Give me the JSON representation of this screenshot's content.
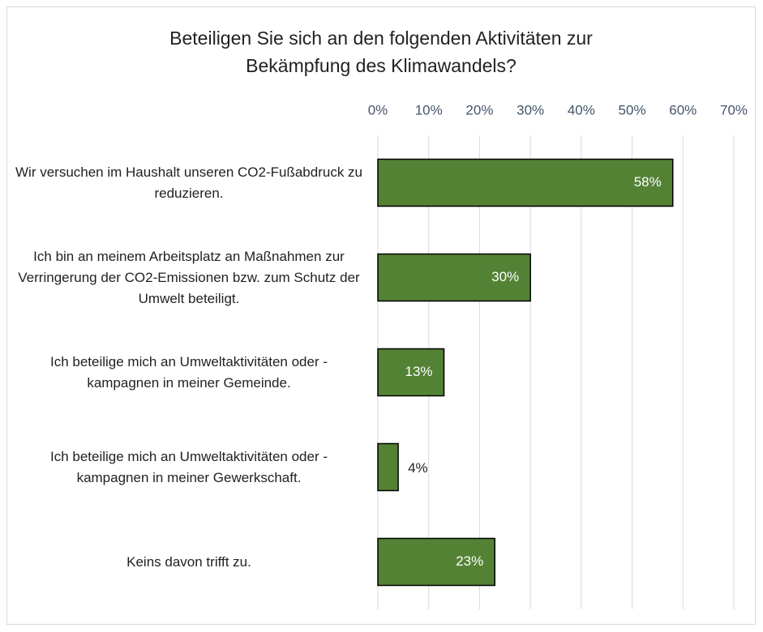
{
  "chart_data": {
    "type": "barh",
    "title": "Beteiligen Sie sich an den folgenden Aktivitäten zur Bekämpfung des Klimawandels?",
    "categories": [
      "Wir versuchen im Haushalt unseren CO2-Fußabdruck zu reduzieren.",
      "Ich bin an meinem Arbeitsplatz an Maßnahmen zur Verringerung der CO2-Emissionen bzw. zum Schutz der Umwelt beteiligt.",
      "Ich beteilige mich an Umweltaktivitäten oder -kampagnen in meiner Gemeinde.",
      "Ich beteilige mich an Umweltaktivitäten oder -kampagnen in meiner Gewerkschaft.",
      "Keins davon trifft zu."
    ],
    "values": [
      58,
      30,
      13,
      4,
      23
    ],
    "value_labels": [
      "58%",
      "30%",
      "13%",
      "4%",
      "23%"
    ],
    "color": "#548235",
    "xlim": [
      0,
      70
    ],
    "xticks": [
      {
        "value": 0,
        "label": "0%"
      },
      {
        "value": 10,
        "label": "10%"
      },
      {
        "value": 20,
        "label": "20%"
      },
      {
        "value": 30,
        "label": "30%"
      },
      {
        "value": 40,
        "label": "40%"
      },
      {
        "value": 50,
        "label": "50%"
      },
      {
        "value": 60,
        "label": "60%"
      },
      {
        "value": 70,
        "label": "70%"
      }
    ],
    "grid": true
  }
}
